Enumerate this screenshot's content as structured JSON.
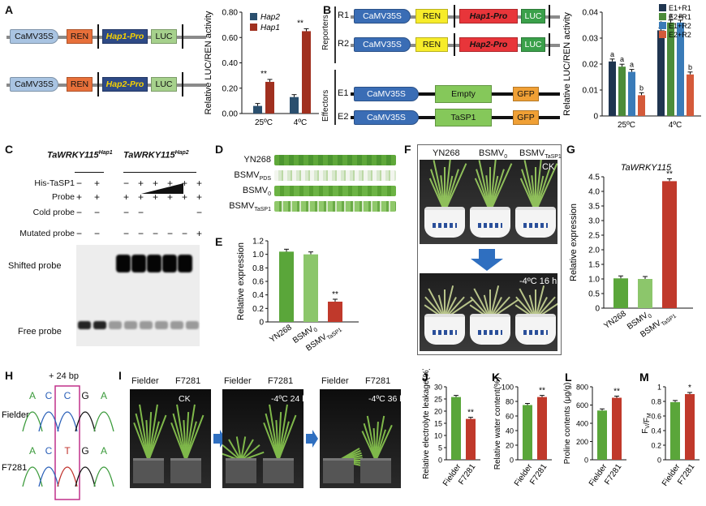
{
  "panelA": {
    "label": "A",
    "constructs": [
      {
        "promoter": "CaMV35S",
        "gene1": "REN",
        "test_promoter": "Hap1-Pro",
        "reporter": "LUC"
      },
      {
        "promoter": "CaMV35S",
        "gene1": "REN",
        "test_promoter": "Hap2-Pro",
        "reporter": "LUC"
      }
    ],
    "chart": {
      "ylabel": "Relative LUC/REN activity",
      "yticks": [
        "0.00",
        "0.20",
        "0.40",
        "0.60",
        "0.80"
      ],
      "categories": [
        "25ºC",
        "4ºC"
      ],
      "legend": [
        "Hap2",
        "Hap1"
      ],
      "sig": [
        "**",
        "**"
      ]
    }
  },
  "panelB": {
    "label": "B",
    "reporters_label": "Reporters",
    "effectors_label": "Effectors",
    "reporters": [
      {
        "id": "R1",
        "promoter": "CaMV35S",
        "gene1": "REN",
        "test_promoter": "Hap1-Pro",
        "reporter": "LUC"
      },
      {
        "id": "R2",
        "promoter": "CaMV35S",
        "gene1": "REN",
        "test_promoter": "Hap2-Pro",
        "reporter": "LUC"
      }
    ],
    "effectors": [
      {
        "id": "E1",
        "promoter": "CaMV35S",
        "gene": "Empty",
        "tag": "GFP"
      },
      {
        "id": "E2",
        "promoter": "CaMV35S",
        "gene": "TaSP1",
        "tag": "GFP"
      }
    ],
    "chart": {
      "ylabel": "Relative LUC/REN activity",
      "yticks": [
        "0",
        "0.01",
        "0.02",
        "0.03",
        "0.04"
      ],
      "categories": [
        "25ºC",
        "4ºC"
      ],
      "legend": [
        "E1+R1",
        "E2+R1",
        "E1+R2",
        "E2+R2"
      ],
      "letters_25": [
        "a",
        "a",
        "a",
        "b"
      ],
      "letters_4": [
        "a",
        "a",
        "a",
        "b"
      ]
    }
  },
  "panelC": {
    "label": "C",
    "title_left": "TaWRKY115",
    "title_left_sup": "Hap1",
    "title_right": "TaWRKY115",
    "title_right_sup": "Hap2",
    "rows": [
      {
        "name": "His-TaSP1",
        "marks": [
          "−",
          "+",
          "−",
          "+",
          "+",
          "+",
          "+",
          "+"
        ]
      },
      {
        "name": "Probe",
        "marks": [
          "+",
          "+",
          "+",
          "+",
          "+",
          "+",
          "+",
          "+"
        ]
      },
      {
        "name": "Cold probe",
        "marks": [
          "−",
          "−",
          "−",
          "−",
          "",
          "",
          "",
          "−"
        ]
      },
      {
        "name": "Mutated probe",
        "marks": [
          "−",
          "−",
          "−",
          "−",
          "−",
          "−",
          "−",
          "+"
        ]
      }
    ],
    "shifted": "Shifted probe",
    "free": "Free probe"
  },
  "panelD": {
    "label": "D",
    "rows": [
      {
        "name": "YN268",
        "sub": ""
      },
      {
        "name": "BSMV",
        "sub": "PDS"
      },
      {
        "name": "BSMV",
        "sub": "0"
      },
      {
        "name": "BSMV",
        "sub": "TaSP1"
      }
    ]
  },
  "panelE": {
    "label": "E",
    "ylabel": "Relative expression",
    "yticks": [
      "0",
      "0.2",
      "0.4",
      "0.6",
      "0.8",
      "1.0",
      "1.2"
    ],
    "categories": [
      {
        "name": "YN268",
        "sub": ""
      },
      {
        "name": "BSMV",
        "sub": "0"
      },
      {
        "name": "BSMV",
        "sub": "TaSP1"
      }
    ],
    "sig": "**"
  },
  "panelF": {
    "label": "F",
    "headers": [
      {
        "name": "YN268",
        "sub": ""
      },
      {
        "name": "BSMV",
        "sub": "0"
      },
      {
        "name": "BSMV",
        "sub": "TaSP1"
      }
    ],
    "ck": "CK",
    "cold": "-4ºC 16 h"
  },
  "panelG": {
    "label": "G",
    "title": "TaWRKY115",
    "ylabel": "Relative expression",
    "yticks": [
      "0",
      "0.5",
      "1.0",
      "1.5",
      "2.0",
      "2.5",
      "3.0",
      "3.5",
      "4.0",
      "4.5"
    ],
    "categories": [
      {
        "name": "YN268",
        "sub": ""
      },
      {
        "name": "BSMV",
        "sub": "0"
      },
      {
        "name": "BSMV",
        "sub": "TaSP1"
      }
    ],
    "sig": "**"
  },
  "panelH": {
    "label": "H",
    "insert": "+ 24 bp",
    "row1": {
      "name": "Fielder",
      "bases": [
        "A",
        "C",
        "C",
        "G",
        "A"
      ]
    },
    "row2": {
      "name": "F7281",
      "bases": [
        "A",
        "C",
        "T",
        "G",
        "A"
      ]
    }
  },
  "panelI": {
    "label": "I",
    "left": "Fielder",
    "right": "F7281",
    "conditions": [
      "CK",
      "-4ºC 24 h",
      "-4ºC 36 h"
    ]
  },
  "panelJ": {
    "label": "J",
    "ylabel": "Relative electrolyte leakage(%)",
    "yticks": [
      "0",
      "5",
      "10",
      "15",
      "20",
      "25",
      "30"
    ],
    "categories": [
      "Fielder",
      "F7281"
    ],
    "sig": "**"
  },
  "panelK": {
    "label": "K",
    "ylabel": "Relative water content(%)",
    "yticks": [
      "0",
      "20",
      "40",
      "60",
      "80",
      "100"
    ],
    "categories": [
      "Fielder",
      "F7281"
    ],
    "sig": "**"
  },
  "panelL": {
    "label": "L",
    "ylabel": "Proline contents (μg/g)",
    "yticks": [
      "0",
      "200",
      "400",
      "600",
      "800"
    ],
    "categories": [
      "Fielder",
      "F7281"
    ],
    "sig": "**"
  },
  "panelM": {
    "label": "M",
    "ylabel": "Fv/FM",
    "ylabel_main": "F",
    "ylabel_sub1": "V",
    "ylabel_mid": "/F",
    "ylabel_sub2": "M",
    "yticks": [
      "0",
      "0.2",
      "0.4",
      "0.6",
      "0.8",
      "1"
    ],
    "categories": [
      "Fielder",
      "F7281"
    ],
    "sig": "*"
  },
  "colors": {
    "hap2": "#2a4f6e",
    "hap1": "#a0301f",
    "green_bar": "#5aa63a",
    "light_green_bar": "#8cc66b",
    "red_bar": "#c0392b",
    "b_s1": "#1f3550",
    "b_s2": "#4c8c3a",
    "b_s3": "#3a7bb8",
    "b_s4": "#d45a3a"
  },
  "chart_data": [
    {
      "type": "bar",
      "id": "A",
      "categories": [
        "25ºC",
        "4ºC"
      ],
      "series": [
        {
          "name": "Hap2",
          "values": [
            0.06,
            0.13
          ]
        },
        {
          "name": "Hap1",
          "values": [
            0.25,
            0.65
          ]
        }
      ],
      "ylim": [
        0,
        0.8
      ],
      "ylabel": "Relative LUC/REN activity"
    },
    {
      "type": "bar",
      "id": "B",
      "categories": [
        "25ºC",
        "4ºC"
      ],
      "series": [
        {
          "name": "E1+R1",
          "values": [
            0.021,
            0.033
          ]
        },
        {
          "name": "E2+R1",
          "values": [
            0.019,
            0.036
          ]
        },
        {
          "name": "E1+R2",
          "values": [
            0.017,
            0.036
          ]
        },
        {
          "name": "E2+R2",
          "values": [
            0.008,
            0.016
          ]
        }
      ],
      "ylim": [
        0,
        0.04
      ],
      "ylabel": "Relative LUC/REN activity"
    },
    {
      "type": "bar",
      "id": "E",
      "categories": [
        "YN268",
        "BSMV0",
        "BSMVTaSP1"
      ],
      "values": [
        1.04,
        1.0,
        0.3
      ],
      "ylim": [
        0,
        1.2
      ],
      "ylabel": "Relative expression"
    },
    {
      "type": "bar",
      "id": "G",
      "categories": [
        "YN268",
        "BSMV0",
        "BSMVTaSP1"
      ],
      "values": [
        1.02,
        1.0,
        4.35
      ],
      "ylim": [
        0,
        4.5
      ],
      "ylabel": "Relative expression",
      "title": "TaWRKY115"
    },
    {
      "type": "bar",
      "id": "J",
      "categories": [
        "Fielder",
        "F7281"
      ],
      "values": [
        25.8,
        16.8
      ],
      "ylim": [
        0,
        30
      ],
      "ylabel": "Relative electrolyte leakage(%)"
    },
    {
      "type": "bar",
      "id": "K",
      "categories": [
        "Fielder",
        "F7281"
      ],
      "values": [
        75,
        86
      ],
      "ylim": [
        0,
        100
      ],
      "ylabel": "Relative water content(%)"
    },
    {
      "type": "bar",
      "id": "L",
      "categories": [
        "Fielder",
        "F7281"
      ],
      "values": [
        540,
        680
      ],
      "ylim": [
        0,
        800
      ],
      "ylabel": "Proline contents (μg/g)"
    },
    {
      "type": "bar",
      "id": "M",
      "categories": [
        "Fielder",
        "F7281"
      ],
      "values": [
        0.79,
        0.9
      ],
      "ylim": [
        0,
        1
      ],
      "ylabel": "Fv/FM"
    }
  ]
}
